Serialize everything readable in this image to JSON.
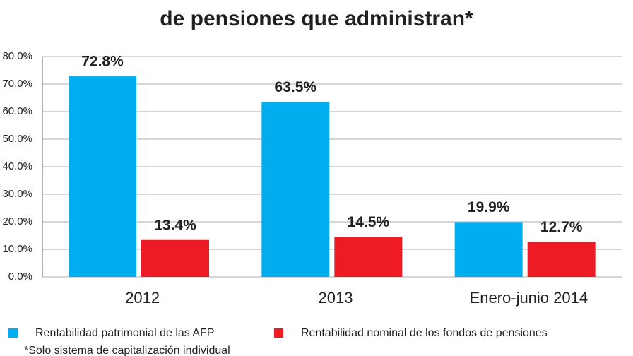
{
  "chart_data": {
    "type": "bar",
    "title": "de pensiones que administran*",
    "note": "*Solo sistema de capitalización individual",
    "categories": [
      "2012",
      "2013",
      "Enero-junio 2014"
    ],
    "series": [
      {
        "name": "Rentabilidad patrimonial de las AFP",
        "color": "#00aeef",
        "values": [
          72.8,
          63.5,
          19.9
        ],
        "value_labels": [
          "72.8%",
          "63.5%",
          "19.9%"
        ]
      },
      {
        "name": "Rentabilidad nominal de los fondos de pensiones",
        "color": "#ed1c24",
        "values": [
          13.4,
          14.5,
          12.7
        ],
        "value_labels": [
          "13.4%",
          "14.5%",
          "12.7%"
        ]
      }
    ],
    "ylim": [
      0,
      80
    ],
    "yticks": [
      {
        "value": 0,
        "label": "0.0%"
      },
      {
        "value": 10,
        "label": "10.0%"
      },
      {
        "value": 20,
        "label": "20.0%"
      },
      {
        "value": 30,
        "label": "30.0%"
      },
      {
        "value": 40,
        "label": "40.0%"
      },
      {
        "value": 50,
        "label": "50.0%"
      },
      {
        "value": 60,
        "label": "60.0%"
      },
      {
        "value": 70,
        "label": "70.0%"
      },
      {
        "value": 80,
        "label": "80.0%"
      }
    ],
    "grid": true
  }
}
